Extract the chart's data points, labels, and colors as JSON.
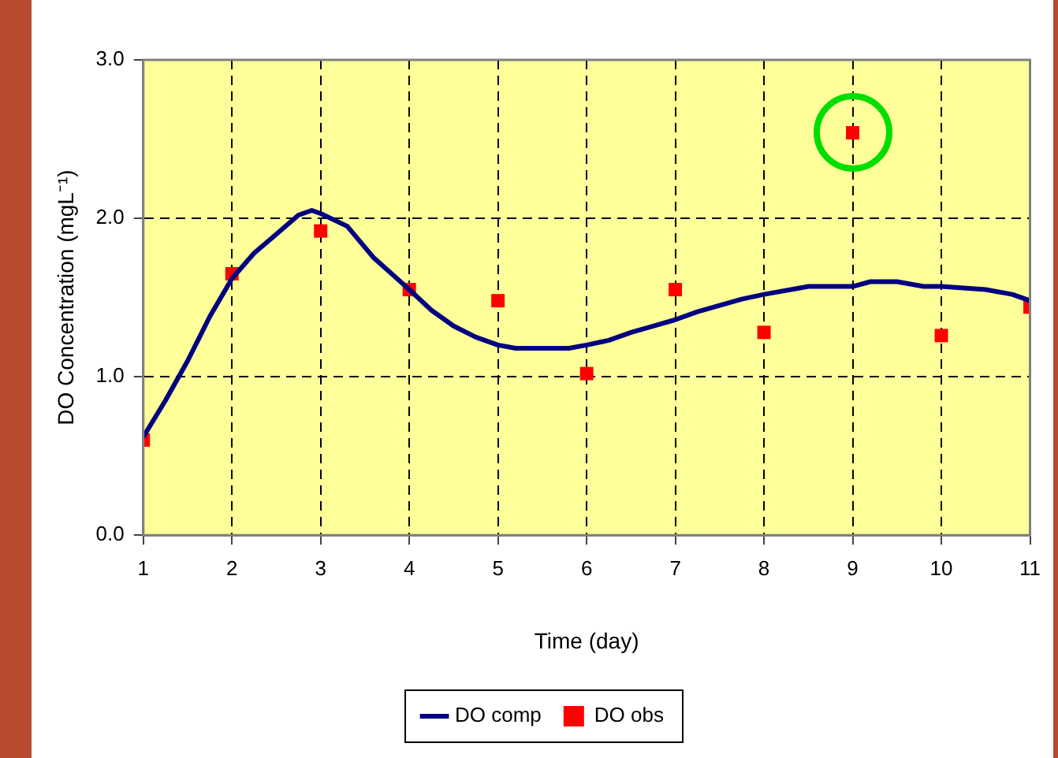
{
  "chart_data": {
    "type": "line",
    "xlabel": "Time (day)",
    "ylabel": "DO Concentration (mgL⁻¹)",
    "xlim": [
      1,
      11
    ],
    "xticks": [
      1,
      2,
      3,
      4,
      5,
      6,
      7,
      8,
      9,
      10,
      11
    ],
    "ylim": [
      0,
      3
    ],
    "yticks": [
      {
        "value": 0,
        "label": "0.0"
      },
      {
        "value": 1,
        "label": "1.0"
      },
      {
        "value": 2,
        "label": "2.0"
      },
      {
        "value": 3,
        "label": "3.0"
      }
    ],
    "grid": true,
    "legend": "bottom",
    "series": [
      {
        "name": "DO comp",
        "color": "#000080",
        "marker": "none",
        "line_style": "solid",
        "x": [
          1,
          1.25,
          1.5,
          1.75,
          2,
          2.25,
          2.5,
          2.75,
          2.9,
          3,
          3.3,
          3.6,
          4,
          4.25,
          4.5,
          4.75,
          5,
          5.2,
          5.5,
          5.8,
          6,
          6.25,
          6.5,
          6.75,
          7,
          7.25,
          7.5,
          7.75,
          8,
          8.5,
          9,
          9.2,
          9.5,
          9.8,
          10,
          10.5,
          10.8,
          11
        ],
        "values": [
          0.62,
          0.85,
          1.1,
          1.38,
          1.62,
          1.78,
          1.9,
          2.02,
          2.05,
          2.03,
          1.95,
          1.75,
          1.55,
          1.42,
          1.32,
          1.25,
          1.2,
          1.18,
          1.18,
          1.18,
          1.2,
          1.23,
          1.28,
          1.32,
          1.36,
          1.41,
          1.45,
          1.49,
          1.52,
          1.57,
          1.57,
          1.6,
          1.6,
          1.57,
          1.57,
          1.55,
          1.52,
          1.48
        ]
      },
      {
        "name": "DO obs",
        "type": "scatter",
        "color": "#ff0000",
        "marker": "square",
        "x": [
          1,
          2,
          3,
          4,
          5,
          6,
          7,
          8,
          9,
          10,
          11
        ],
        "values": [
          0.6,
          1.65,
          1.92,
          1.55,
          1.48,
          1.02,
          1.55,
          1.28,
          2.54,
          1.26,
          1.44
        ]
      }
    ]
  }
}
